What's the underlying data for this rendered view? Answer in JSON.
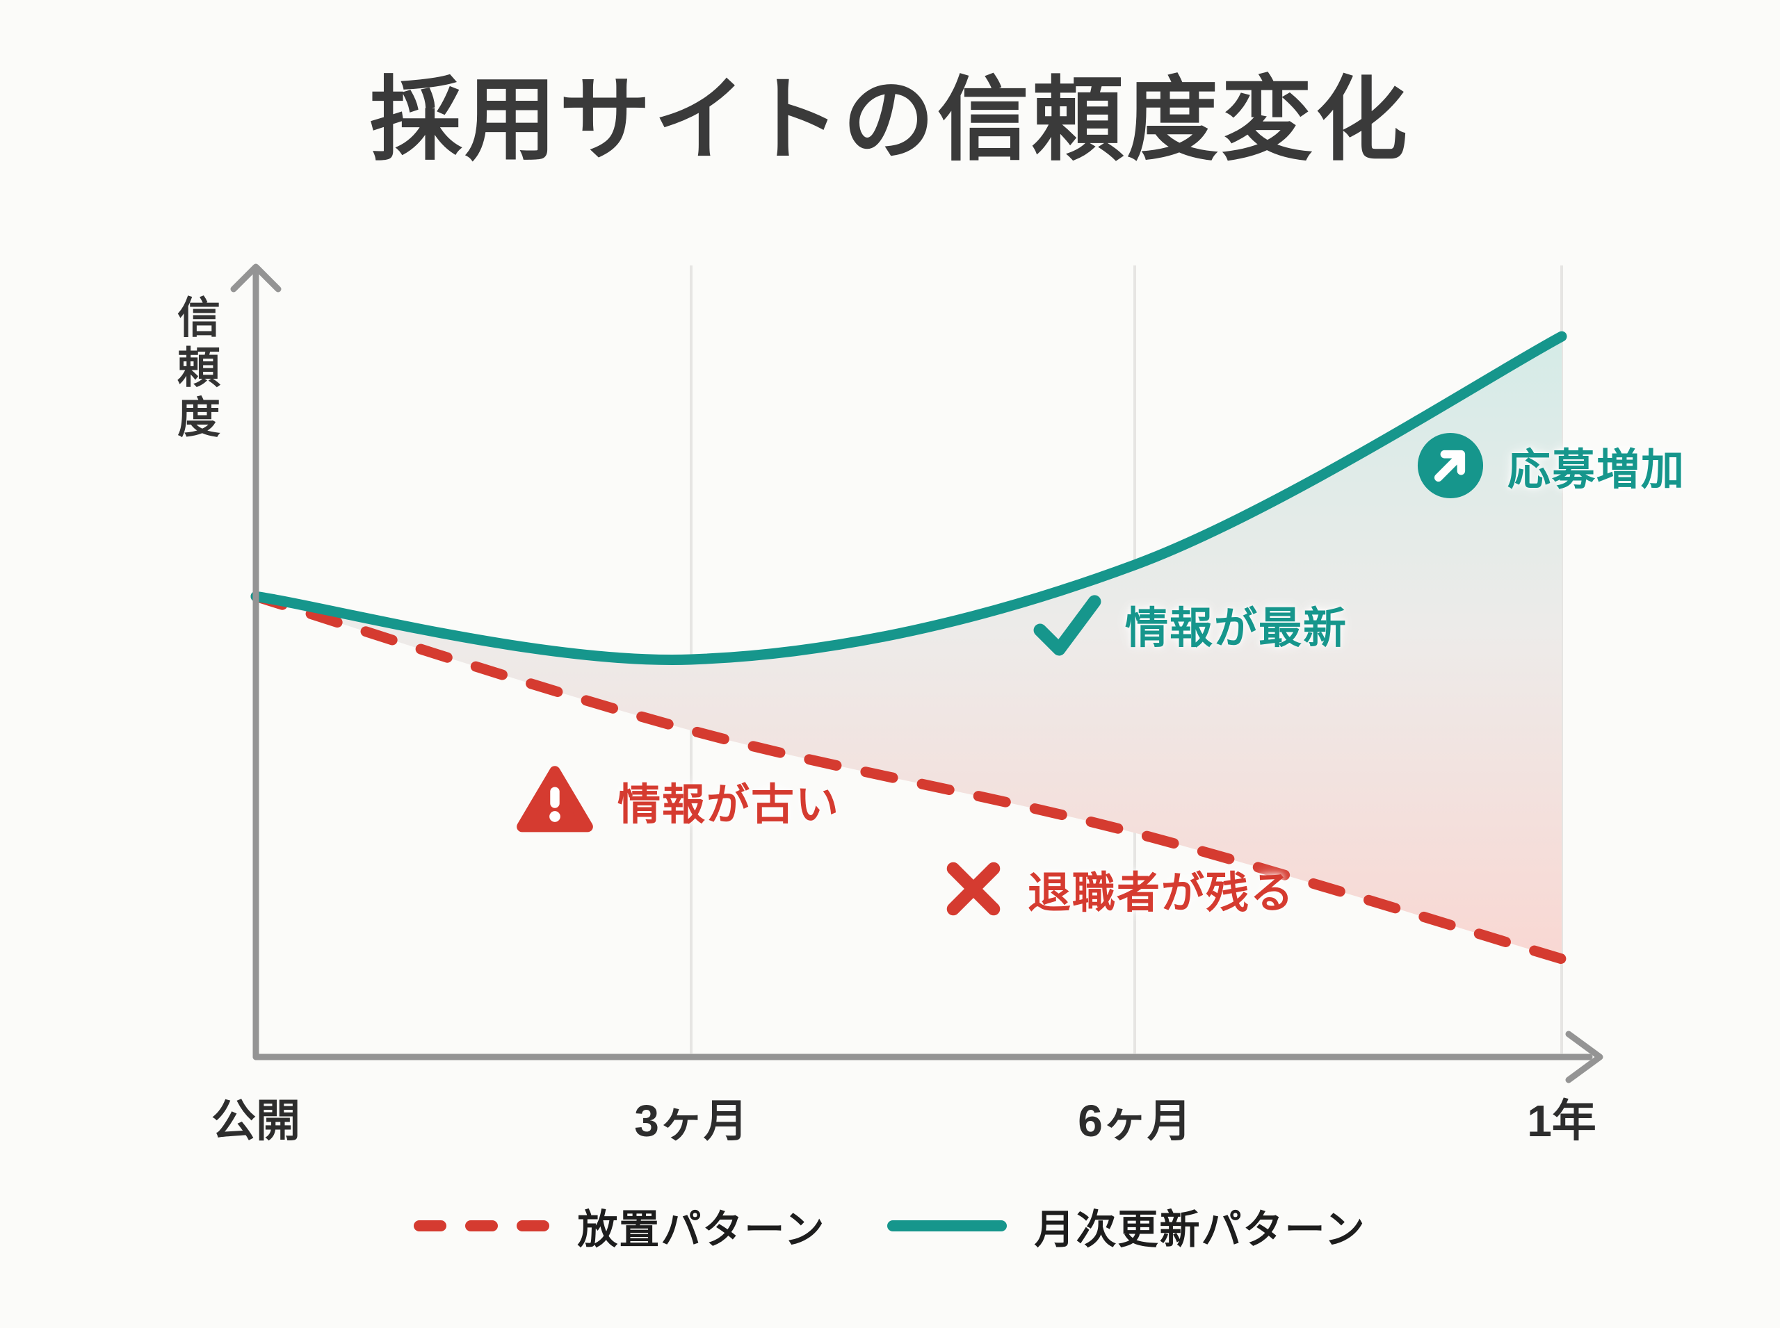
{
  "title": "採用サイトの信頼度変化",
  "y_axis_label": "信頼度",
  "annotations": {
    "stale": {
      "label": "情報が古い",
      "icon": "warning-triangle-icon"
    },
    "leavers": {
      "label": "退職者が残る",
      "icon": "x-mark-icon"
    },
    "fresh": {
      "label": "情報が最新",
      "icon": "check-icon"
    },
    "apps": {
      "label": "応募増加",
      "icon": "arrow-up-right-icon"
    }
  },
  "legend": {
    "neglect_label": "放置パターン",
    "monthly_label": "月次更新パターン"
  },
  "colors": {
    "negative": "#d53b30",
    "positive": "#16968c",
    "title_text": "#3a3a3a",
    "tick_text": "#2d2d2d",
    "legend_text": "#1d1d1d",
    "axis": "#949494",
    "grid": "#e6e5e3",
    "background": "#fbfbf9",
    "fill_top": "#d4ebe7",
    "fill_mid": "#edebe9",
    "fill_bottom": "#f9d7d2"
  },
  "chart_data": {
    "type": "line",
    "title": "採用サイトの信頼度変化",
    "categories": [
      "公開",
      "3ヶ月",
      "6ヶ月",
      "1年"
    ],
    "series": [
      {
        "name": "放置パターン",
        "style": "dashed",
        "color": "#d53b30",
        "values": [
          58,
          41,
          28,
          12
        ]
      },
      {
        "name": "月次更新パターン",
        "style": "solid",
        "color": "#16968c",
        "values": [
          58,
          50,
          62,
          91
        ]
      }
    ],
    "xlabel": "",
    "ylabel": "信頼度",
    "ylim": [
      0,
      100
    ],
    "grid": true,
    "legend_position": "bottom",
    "area_between_curves": true,
    "annotations": [
      "情報が古い",
      "退職者が残る",
      "情報が最新",
      "応募増加"
    ]
  }
}
